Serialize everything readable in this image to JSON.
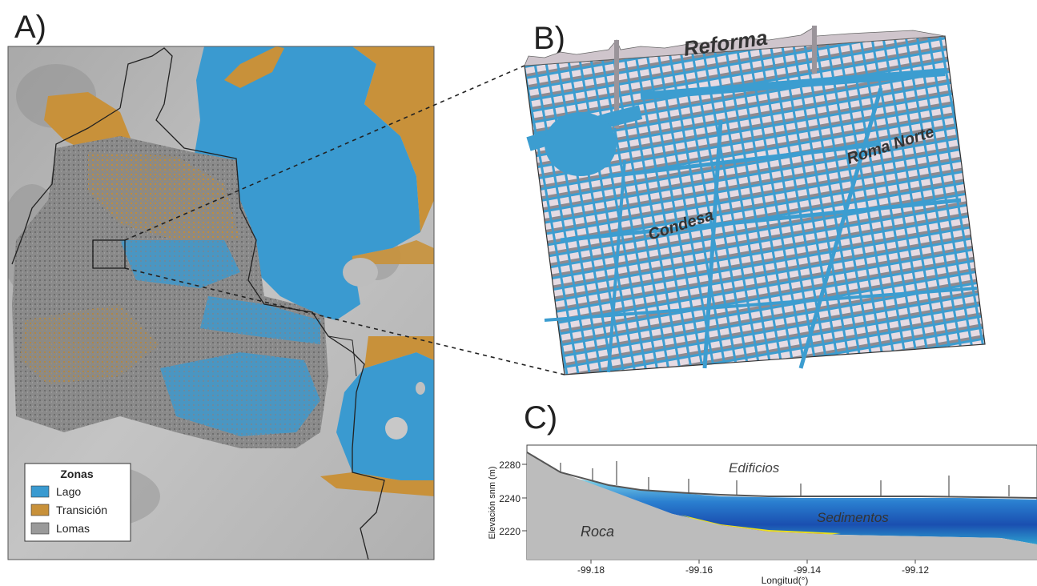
{
  "panels": {
    "a_label": "A)",
    "b_label": "B)",
    "c_label": "C)"
  },
  "legend": {
    "title": "Zonas",
    "items": [
      {
        "label": "Lago",
        "color": "#3a9ad0"
      },
      {
        "label": "Transición",
        "color": "#c8913a"
      },
      {
        "label": "Lomas",
        "color": "#9a9a9a"
      }
    ]
  },
  "map_3d": {
    "labels": [
      "Reforma",
      "Roma Norte",
      "Condesa"
    ]
  },
  "section": {
    "ylabel": "Elevación snm (m)",
    "xlabel": "Longitud(°)",
    "yticks": [
      "2280",
      "2240",
      "2220"
    ],
    "xticks": [
      "-99.18",
      "-99.16",
      "-99.14",
      "-99.12"
    ],
    "annotations": {
      "buildings": "Edificios",
      "sediments": "Sedimentos",
      "rock": "Roca"
    }
  },
  "colors": {
    "lake": "#3a9ad0",
    "transition": "#c8913a",
    "hills": "#9a9a9a",
    "building": "#e9dfe6"
  }
}
